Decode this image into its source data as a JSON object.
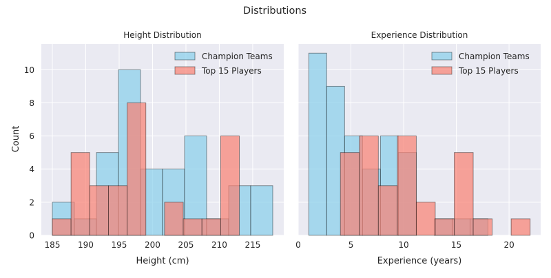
{
  "figure": {
    "suptitle": "Distributions",
    "ylabel_shared": "Count"
  },
  "colors": {
    "series_a": "#87ceeb",
    "series_b": "#fa8072",
    "plot_bg": "#eaeaf2",
    "grid": "#ffffff",
    "bar_edge": "#000000"
  },
  "chart_data": [
    {
      "type": "bar",
      "title": "Height Distribution",
      "xlabel": "Height (cm)",
      "ylabel": "Count",
      "xlim": [
        183.35,
        219.65
      ],
      "ylim": [
        0,
        11.55
      ],
      "xticks": [
        185,
        190,
        195,
        200,
        205,
        210,
        215
      ],
      "yticks": [
        0,
        2,
        4,
        6,
        8,
        10
      ],
      "grid": true,
      "legend": "top-right",
      "series": [
        {
          "name": "Champion Teams",
          "color": "#87ceeb",
          "bins": [
            {
              "x0": 185.0,
              "x1": 188.3,
              "count": 2
            },
            {
              "x0": 188.3,
              "x1": 191.6,
              "count": 1
            },
            {
              "x0": 191.6,
              "x1": 194.9,
              "count": 5
            },
            {
              "x0": 194.9,
              "x1": 198.2,
              "count": 10
            },
            {
              "x0": 198.2,
              "x1": 201.5,
              "count": 4
            },
            {
              "x0": 201.5,
              "x1": 204.8,
              "count": 4
            },
            {
              "x0": 204.8,
              "x1": 208.1,
              "count": 6
            },
            {
              "x0": 208.1,
              "x1": 211.4,
              "count": 1
            },
            {
              "x0": 211.4,
              "x1": 214.7,
              "count": 3
            },
            {
              "x0": 214.7,
              "x1": 218.0,
              "count": 3
            }
          ]
        },
        {
          "name": "Top 15 Players",
          "color": "#fa8072",
          "bins": [
            {
              "x0": 185.0,
              "x1": 187.8,
              "count": 1
            },
            {
              "x0": 187.8,
              "x1": 190.6,
              "count": 5
            },
            {
              "x0": 190.6,
              "x1": 193.4,
              "count": 3
            },
            {
              "x0": 193.4,
              "x1": 196.2,
              "count": 3
            },
            {
              "x0": 196.2,
              "x1": 199.0,
              "count": 8
            },
            {
              "x0": 199.0,
              "x1": 201.8,
              "count": 0
            },
            {
              "x0": 201.8,
              "x1": 204.6,
              "count": 2
            },
            {
              "x0": 204.6,
              "x1": 207.4,
              "count": 1
            },
            {
              "x0": 207.4,
              "x1": 210.2,
              "count": 1
            },
            {
              "x0": 210.2,
              "x1": 213.0,
              "count": 6
            }
          ]
        }
      ]
    },
    {
      "type": "bar",
      "title": "Experience Distribution",
      "xlabel": "Experience (years)",
      "ylabel": "",
      "xlim": [
        0,
        23
      ],
      "ylim": [
        0,
        11.55
      ],
      "xticks": [
        0,
        5,
        10,
        15,
        20
      ],
      "yticks": [
        0,
        2,
        4,
        6,
        8,
        10
      ],
      "grid": true,
      "legend": "top-right",
      "series": [
        {
          "name": "Champion Teams",
          "color": "#87ceeb",
          "bins": [
            {
              "x0": 1.0,
              "x1": 2.7,
              "count": 11
            },
            {
              "x0": 2.7,
              "x1": 4.4,
              "count": 9
            },
            {
              "x0": 4.4,
              "x1": 6.1,
              "count": 6
            },
            {
              "x0": 6.1,
              "x1": 7.8,
              "count": 4
            },
            {
              "x0": 7.8,
              "x1": 9.5,
              "count": 6
            },
            {
              "x0": 9.5,
              "x1": 11.2,
              "count": 5
            },
            {
              "x0": 11.2,
              "x1": 12.9,
              "count": 0
            },
            {
              "x0": 12.9,
              "x1": 14.6,
              "count": 1
            },
            {
              "x0": 14.6,
              "x1": 16.3,
              "count": 1
            },
            {
              "x0": 16.3,
              "x1": 18.0,
              "count": 1
            }
          ]
        },
        {
          "name": "Top 15 Players",
          "color": "#fa8072",
          "bins": [
            {
              "x0": 4.0,
              "x1": 5.8,
              "count": 5
            },
            {
              "x0": 5.8,
              "x1": 7.6,
              "count": 6
            },
            {
              "x0": 7.6,
              "x1": 9.4,
              "count": 3
            },
            {
              "x0": 9.4,
              "x1": 11.2,
              "count": 6
            },
            {
              "x0": 11.2,
              "x1": 13.0,
              "count": 2
            },
            {
              "x0": 13.0,
              "x1": 14.8,
              "count": 1
            },
            {
              "x0": 14.8,
              "x1": 16.6,
              "count": 5
            },
            {
              "x0": 16.6,
              "x1": 18.4,
              "count": 1
            },
            {
              "x0": 18.4,
              "x1": 20.2,
              "count": 0
            },
            {
              "x0": 20.2,
              "x1": 22.0,
              "count": 1
            }
          ]
        }
      ]
    }
  ]
}
